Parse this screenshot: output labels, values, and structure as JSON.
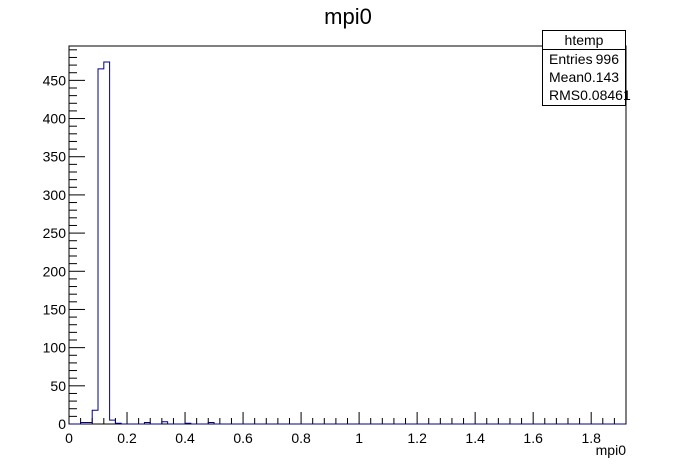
{
  "chart_data": {
    "type": "histogram",
    "title": "mpi0",
    "xlabel": "mpi0",
    "ylabel": "",
    "xlim": [
      0,
      1.92
    ],
    "ylim": [
      0,
      495
    ],
    "bin_width": 0.02,
    "x_ticks": [
      "0",
      "0.2",
      "0.4",
      "0.6",
      "0.8",
      "1",
      "1.2",
      "1.4",
      "1.6",
      "1.8"
    ],
    "y_ticks": [
      "0",
      "50",
      "100",
      "150",
      "200",
      "250",
      "300",
      "350",
      "400",
      "450"
    ],
    "bins": [
      {
        "x0": 0.04,
        "x1": 0.06,
        "y": 2
      },
      {
        "x0": 0.06,
        "x1": 0.08,
        "y": 2
      },
      {
        "x0": 0.08,
        "x1": 0.1,
        "y": 18
      },
      {
        "x0": 0.1,
        "x1": 0.12,
        "y": 465
      },
      {
        "x0": 0.12,
        "x1": 0.14,
        "y": 474
      },
      {
        "x0": 0.14,
        "x1": 0.16,
        "y": 5
      },
      {
        "x0": 0.16,
        "x1": 0.18,
        "y": 1
      },
      {
        "x0": 0.26,
        "x1": 0.28,
        "y": 2
      },
      {
        "x0": 0.32,
        "x1": 0.34,
        "y": 3
      },
      {
        "x0": 0.4,
        "x1": 0.42,
        "y": 1
      },
      {
        "x0": 0.48,
        "x1": 0.5,
        "y": 2
      }
    ],
    "line_color": "#00008b"
  },
  "stats": {
    "title": "htemp",
    "rows": [
      {
        "label": "Entries",
        "value": "996"
      },
      {
        "label": "Mean",
        "value": "0.143"
      },
      {
        "label": "RMS",
        "value": "0.08461"
      }
    ]
  }
}
